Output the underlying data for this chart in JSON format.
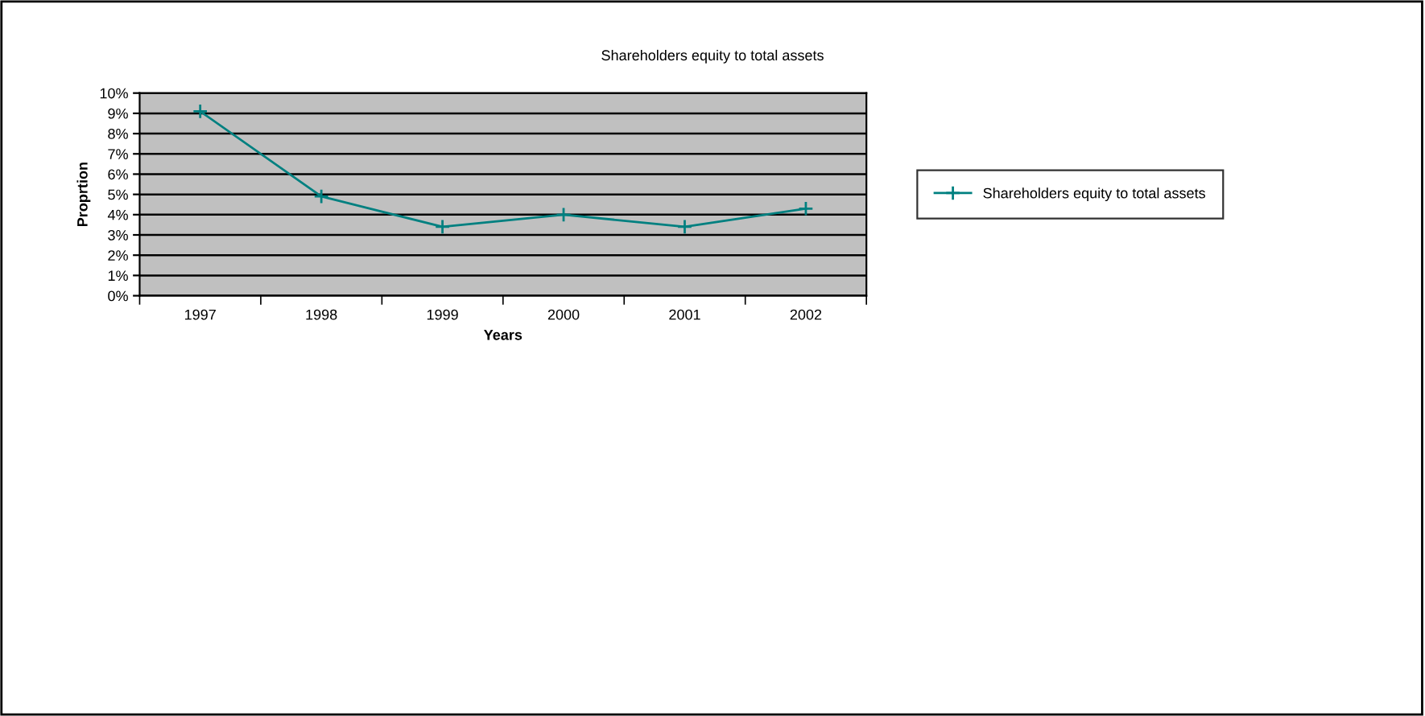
{
  "chart_data": {
    "type": "line",
    "title": "Shareholders equity to total assets",
    "xlabel": "Years",
    "ylabel": "Proprtion",
    "categories": [
      "1997",
      "1998",
      "1999",
      "2000",
      "2001",
      "2002"
    ],
    "series": [
      {
        "name": "Shareholders equity to total assets",
        "color": "#008080",
        "values": [
          9.1,
          4.9,
          3.4,
          4.0,
          3.4,
          4.3
        ]
      }
    ],
    "ylim": [
      0,
      10
    ],
    "yticks": [
      {
        "value": 0,
        "label": "0%"
      },
      {
        "value": 1,
        "label": "1%"
      },
      {
        "value": 2,
        "label": "2%"
      },
      {
        "value": 3,
        "label": "3%"
      },
      {
        "value": 4,
        "label": "4%"
      },
      {
        "value": 5,
        "label": "5%"
      },
      {
        "value": 6,
        "label": "6%"
      },
      {
        "value": 7,
        "label": "7%"
      },
      {
        "value": 8,
        "label": "8%"
      },
      {
        "value": 9,
        "label": "9%"
      },
      {
        "value": 10,
        "label": "10%"
      }
    ],
    "grid": "y",
    "legend": "right",
    "marker": "cross",
    "line_style": "solid"
  }
}
